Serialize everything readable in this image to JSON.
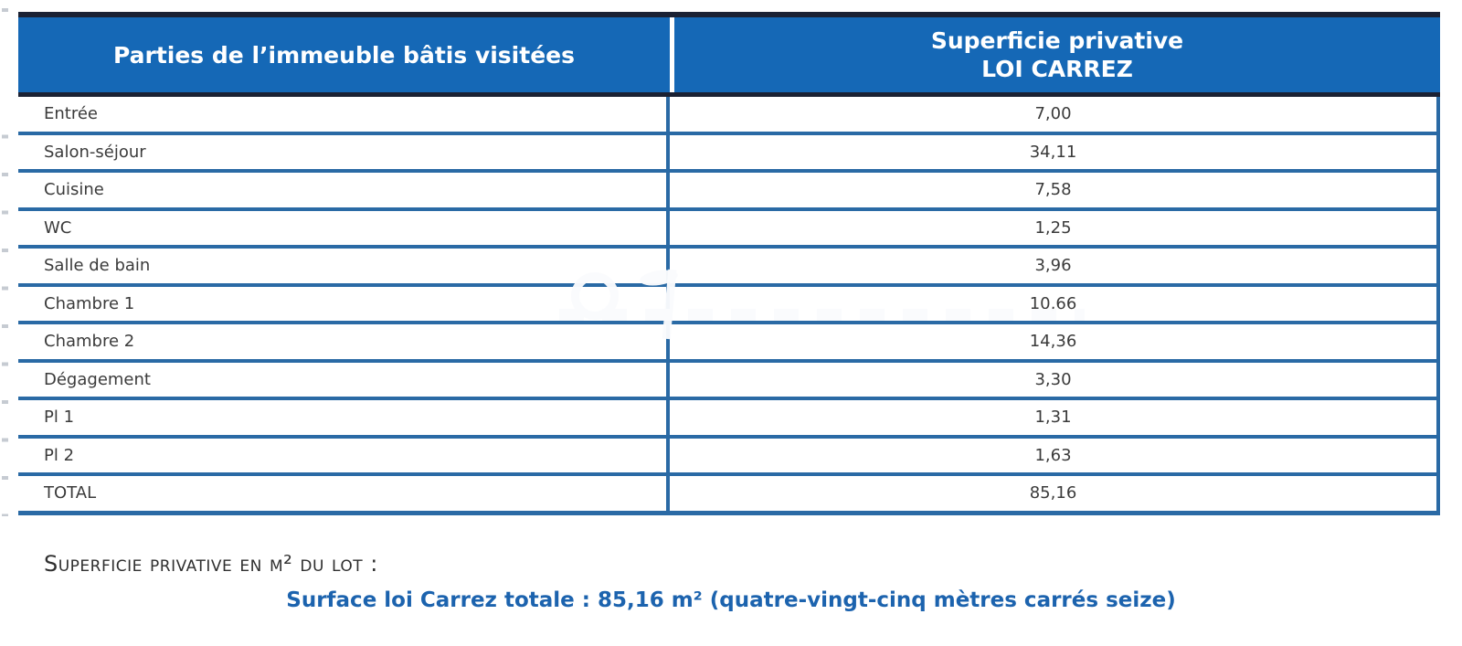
{
  "table": {
    "header": {
      "col1": "Parties de l’immeuble bâtis visitées",
      "col2_line1": "Superficie privative",
      "col2_line2": "LOI CARREZ"
    },
    "rows": [
      {
        "label": "Entrée",
        "value": "7,00"
      },
      {
        "label": "Salon-séjour",
        "value": "34,11"
      },
      {
        "label": "Cuisine",
        "value": "7,58"
      },
      {
        "label": "WC",
        "value": "1,25"
      },
      {
        "label": "Salle de bain",
        "value": "3,96"
      },
      {
        "label": "Chambre 1",
        "value": "10,66"
      },
      {
        "label": "Chambre 2",
        "value": "14,36"
      },
      {
        "label": "Dégagement",
        "value": "3,30"
      },
      {
        "label": "Pl 1",
        "value": "1,31"
      },
      {
        "label": "Pl 2",
        "value": "1,63"
      },
      {
        "label": "TOTAL",
        "value": "85,16"
      }
    ]
  },
  "footer": {
    "lot_line": "Superficie privative en m² du lot :",
    "total_line": "Surface loi Carrez totale : 85,16 m² (quatre-vingt-cinq mètres carrés seize)"
  },
  "colors": {
    "header_bg": "#1568b6",
    "dark_border": "#1b2133",
    "grid_blue": "#2a6aa5",
    "accent_text": "#1c63ae",
    "body_text": "#3b3b3b"
  }
}
